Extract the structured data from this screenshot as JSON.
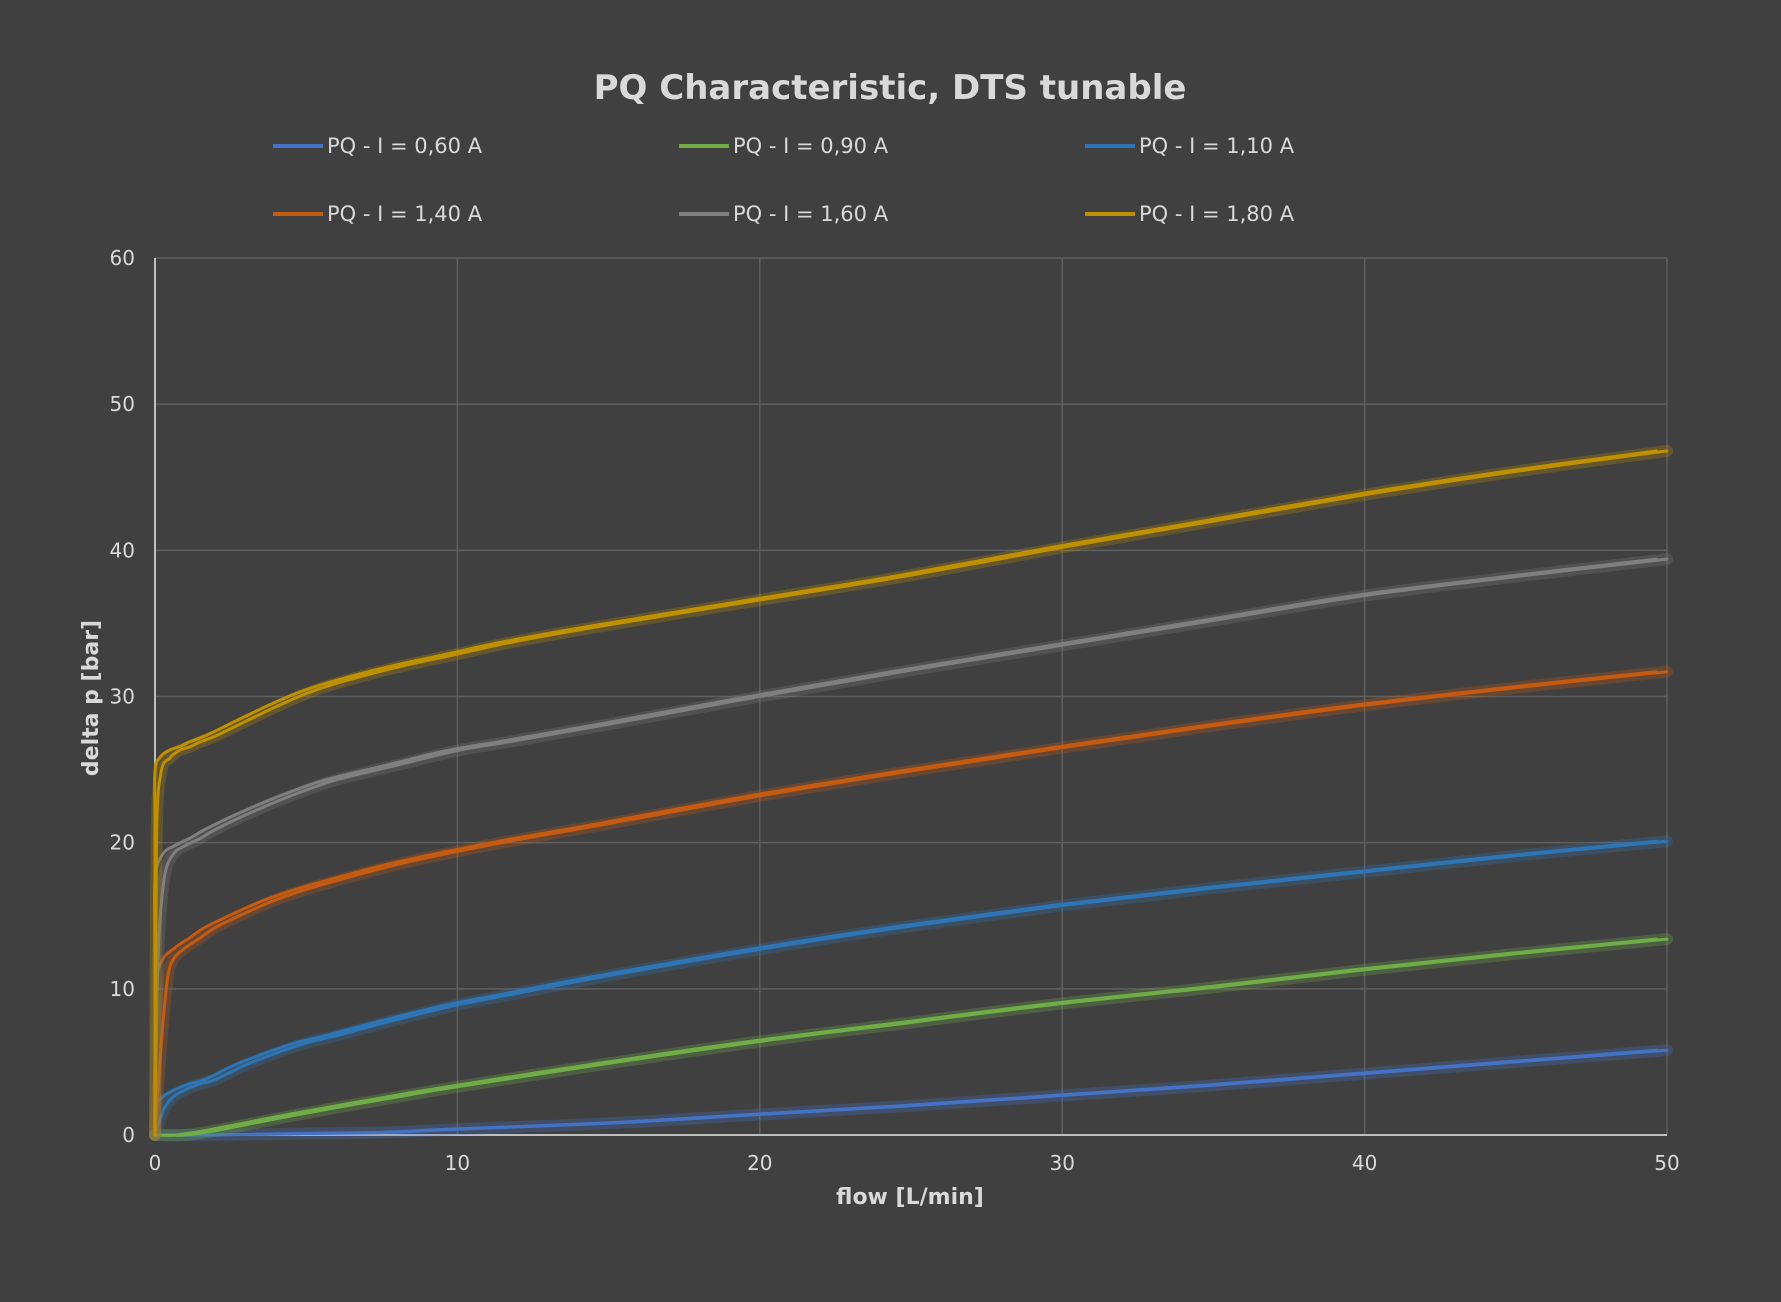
{
  "chart_data": {
    "type": "line",
    "title": "PQ Characteristic, DTS tunable",
    "xlabel": "flow [L/min]",
    "ylabel": "delta p [bar]",
    "xlim": [
      0,
      50
    ],
    "ylim": [
      0,
      60
    ],
    "x_ticks": [
      "0",
      "10",
      "20",
      "30",
      "40",
      "50"
    ],
    "y_ticks": [
      "0",
      "10",
      "20",
      "30",
      "40",
      "50",
      "60"
    ],
    "grid": true,
    "legend_position": "top",
    "series": [
      {
        "name": "PQ - I = 0,60 A",
        "color": "#4472c4",
        "x": [
          0,
          2,
          5,
          8,
          10,
          15,
          20,
          25,
          30,
          35,
          40,
          45,
          50
        ],
        "y": [
          0,
          0,
          0.1,
          0.2,
          0.4,
          0.8,
          1.4,
          2.0,
          2.7,
          3.4,
          4.2,
          5.0,
          5.8
        ]
      },
      {
        "name": "PQ - I = 0,90 A",
        "color": "#70ad47",
        "x": [
          0,
          1,
          2,
          3,
          5,
          8,
          10,
          15,
          20,
          25,
          30,
          35,
          40,
          45,
          50
        ],
        "y": [
          0,
          0,
          0.3,
          0.7,
          1.5,
          2.6,
          3.3,
          4.9,
          6.4,
          7.7,
          9.0,
          10.1,
          11.3,
          12.4,
          13.4
        ]
      },
      {
        "name": "PQ - I = 1,10 A",
        "color": "#2e75b6",
        "x": [
          0,
          0.3,
          0.6,
          1,
          1.5,
          2,
          3,
          4,
          5,
          6,
          8,
          10,
          12,
          15,
          20,
          25,
          30,
          35,
          40,
          45,
          50
        ],
        "y": [
          0,
          1.8,
          2.6,
          3.1,
          3.5,
          3.8,
          4.8,
          5.6,
          6.3,
          6.8,
          7.9,
          8.9,
          9.7,
          10.9,
          12.7,
          14.3,
          15.7,
          16.9,
          18.0,
          19.1,
          20.1
        ]
      },
      {
        "name": "PQ - I = 1,40 A",
        "color": "#c55a11",
        "x": [
          0,
          0.2,
          0.4,
          0.6,
          1,
          1.5,
          2,
          3,
          4,
          5,
          6,
          8,
          10,
          12,
          15,
          20,
          25,
          30,
          35,
          40,
          45,
          50
        ],
        "y": [
          0,
          6.0,
          10.5,
          12.0,
          12.8,
          13.5,
          14.2,
          15.2,
          16.1,
          16.8,
          17.4,
          18.5,
          19.4,
          20.2,
          21.3,
          23.2,
          24.9,
          26.5,
          28.0,
          29.4,
          30.6,
          31.7
        ]
      },
      {
        "name": "PQ - I = 1,60 A",
        "color": "#7f7f7f",
        "x": [
          0,
          0.1,
          0.3,
          0.6,
          1,
          1.5,
          2,
          3,
          4,
          5,
          6,
          8,
          10,
          12,
          15,
          20,
          25,
          30,
          35,
          40,
          45,
          50
        ],
        "y": [
          0,
          12.0,
          17.5,
          19.2,
          19.8,
          20.3,
          20.9,
          21.9,
          22.8,
          23.6,
          24.3,
          25.3,
          26.3,
          27.0,
          28.1,
          30.0,
          31.8,
          33.5,
          35.2,
          36.9,
          38.2,
          39.4
        ]
      },
      {
        "name": "PQ - I = 1,80 A",
        "color": "#bf9000",
        "x": [
          0,
          0.05,
          0.2,
          0.5,
          0.8,
          1.2,
          1.5,
          2,
          3,
          4,
          5,
          6,
          8,
          10,
          12,
          15,
          20,
          25,
          30,
          35,
          40,
          45,
          50
        ],
        "y": [
          0,
          20.0,
          24.8,
          25.8,
          26.3,
          26.6,
          26.9,
          27.3,
          28.3,
          29.3,
          30.2,
          30.9,
          32.0,
          32.9,
          33.8,
          34.9,
          36.6,
          38.3,
          40.2,
          42.0,
          43.8,
          45.4,
          46.8
        ]
      }
    ]
  }
}
